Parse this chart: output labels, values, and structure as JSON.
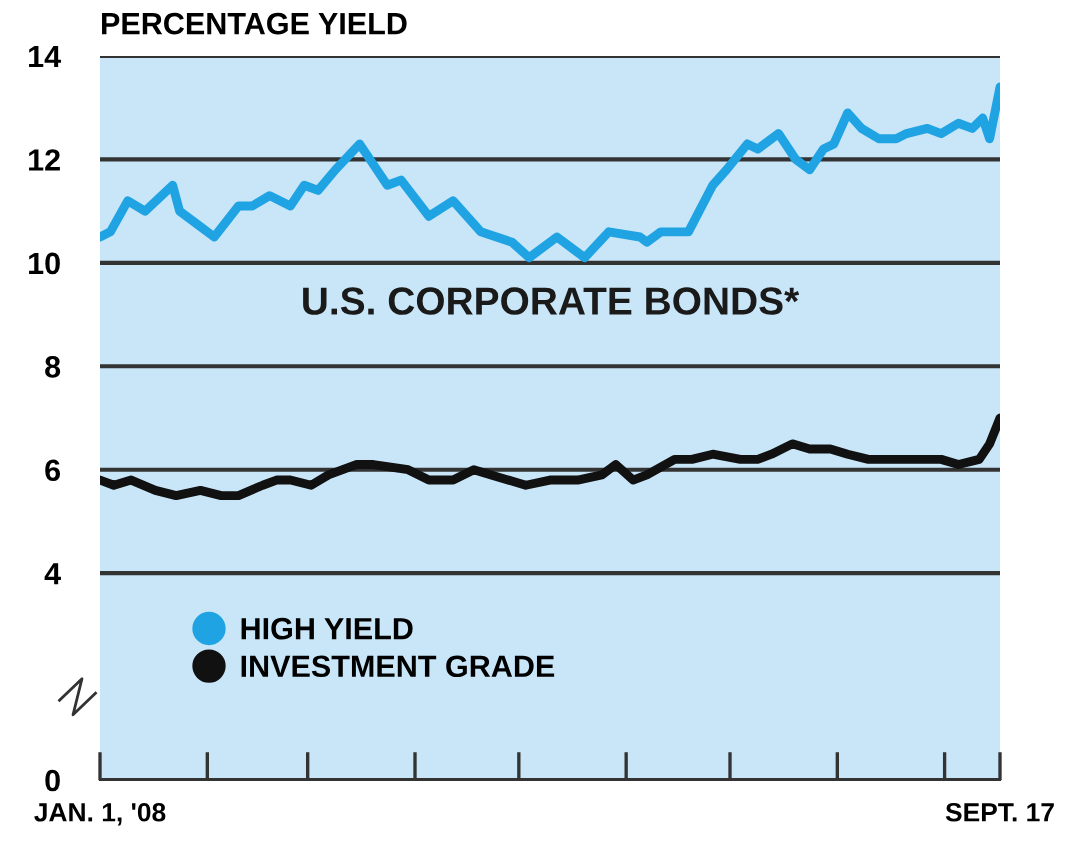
{
  "chart_data": {
    "type": "line",
    "title": "U.S. CORPORATE BONDS*",
    "ylabel": "PERCENTAGE YIELD",
    "x": [
      "2008-01-01",
      "2008-01-04",
      "2008-01-09",
      "2008-01-14",
      "2008-01-22",
      "2008-01-24",
      "2008-01-30",
      "2008-02-03",
      "2008-02-10",
      "2008-02-14",
      "2008-02-19",
      "2008-02-25",
      "2008-02-29",
      "2008-03-04",
      "2008-03-09",
      "2008-03-16",
      "2008-03-20",
      "2008-03-24",
      "2008-03-28",
      "2008-04-05",
      "2008-04-12",
      "2008-04-20",
      "2008-04-29",
      "2008-05-04",
      "2008-05-12",
      "2008-05-20",
      "2008-05-27",
      "2008-06-05",
      "2008-06-07",
      "2008-06-11",
      "2008-06-19",
      "2008-06-26",
      "2008-06-30",
      "2008-07-06",
      "2008-07-09",
      "2008-07-15",
      "2008-07-20",
      "2008-07-24",
      "2008-07-28",
      "2008-07-31",
      "2008-08-04",
      "2008-08-08",
      "2008-08-13",
      "2008-08-18",
      "2008-08-21",
      "2008-08-27",
      "2008-08-31",
      "2008-09-05",
      "2008-09-09",
      "2008-09-12",
      "2008-09-14",
      "2008-09-17"
    ],
    "series": [
      {
        "name": "HIGH YIELD",
        "color": "#1fa3e3",
        "values": [
          10.5,
          10.6,
          11.2,
          11.0,
          11.5,
          11.0,
          10.7,
          10.5,
          11.1,
          11.1,
          11.3,
          11.1,
          11.5,
          11.4,
          11.8,
          12.3,
          11.9,
          11.5,
          11.6,
          10.9,
          11.2,
          10.6,
          10.4,
          10.1,
          10.5,
          10.1,
          10.6,
          10.5,
          10.4,
          10.6,
          10.6,
          11.5,
          11.8,
          12.3,
          12.2,
          12.5,
          12.0,
          11.8,
          12.2,
          12.3,
          12.9,
          12.6,
          12.4,
          12.4,
          12.5,
          12.6,
          12.5,
          12.7,
          12.6,
          12.8,
          12.4,
          13.4
        ]
      },
      {
        "name": "INVESTMENT GRADE",
        "color": "#111111",
        "x": [
          "2008-01-01",
          "2008-01-05",
          "2008-01-10",
          "2008-01-17",
          "2008-01-23",
          "2008-01-30",
          "2008-02-05",
          "2008-02-10",
          "2008-02-17",
          "2008-02-21",
          "2008-02-25",
          "2008-03-02",
          "2008-03-07",
          "2008-03-15",
          "2008-03-20",
          "2008-03-30",
          "2008-04-05",
          "2008-04-12",
          "2008-04-18",
          "2008-04-23",
          "2008-05-03",
          "2008-05-10",
          "2008-05-18",
          "2008-05-25",
          "2008-05-29",
          "2008-06-03",
          "2008-06-07",
          "2008-06-15",
          "2008-06-20",
          "2008-06-26",
          "2008-07-04",
          "2008-07-09",
          "2008-07-13",
          "2008-07-19",
          "2008-07-24",
          "2008-07-30",
          "2008-08-04",
          "2008-08-10",
          "2008-08-19",
          "2008-08-23",
          "2008-08-31",
          "2008-09-05",
          "2008-09-11",
          "2008-09-14",
          "2008-09-17"
        ],
        "values": [
          5.8,
          5.7,
          5.8,
          5.6,
          5.5,
          5.6,
          5.5,
          5.5,
          5.7,
          5.8,
          5.8,
          5.7,
          5.9,
          6.1,
          6.1,
          6.0,
          5.8,
          5.8,
          6.0,
          5.9,
          5.7,
          5.8,
          5.8,
          5.9,
          6.1,
          5.8,
          5.9,
          6.2,
          6.2,
          6.3,
          6.2,
          6.2,
          6.3,
          6.5,
          6.4,
          6.4,
          6.3,
          6.2,
          6.2,
          6.2,
          6.2,
          6.1,
          6.2,
          6.5,
          7.0
        ]
      }
    ],
    "xlim": [
      "2008-01-01",
      "2008-09-17"
    ],
    "xticks": [
      {
        "value": "2008-01-01",
        "label": "JAN. 1, '08"
      },
      {
        "value": "2008-02-01",
        "label": null
      },
      {
        "value": "2008-03-01",
        "label": null
      },
      {
        "value": "2008-04-01",
        "label": null
      },
      {
        "value": "2008-05-01",
        "label": null
      },
      {
        "value": "2008-06-01",
        "label": null
      },
      {
        "value": "2008-07-01",
        "label": null
      },
      {
        "value": "2008-08-01",
        "label": null
      },
      {
        "value": "2008-09-01",
        "label": null
      },
      {
        "value": "2008-09-17",
        "label": "SEPT. 17"
      }
    ],
    "ylim": [
      0,
      14
    ],
    "yticks": [
      0,
      4,
      6,
      8,
      10,
      12,
      14
    ],
    "grid": "y",
    "legend": "bottom left",
    "marker": "none",
    "line_style": "solid"
  }
}
